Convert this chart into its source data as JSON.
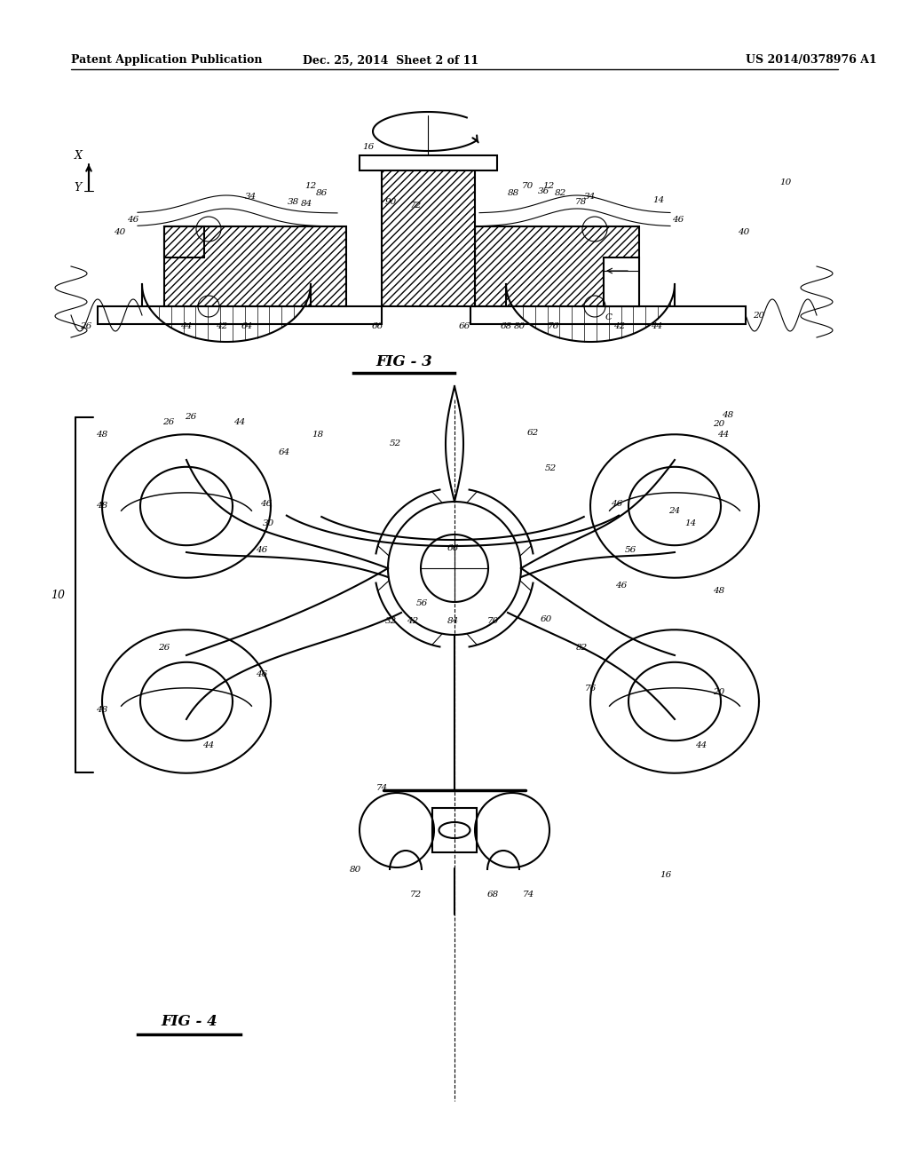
{
  "title_left": "Patent Application Publication",
  "title_mid": "Dec. 25, 2014  Sheet 2 of 11",
  "title_right": "US 2014/0378976 A1",
  "fig3_label": "FIG - 3",
  "fig4_label": "FIG - 4",
  "bg_color": "#ffffff",
  "line_color": "#000000"
}
